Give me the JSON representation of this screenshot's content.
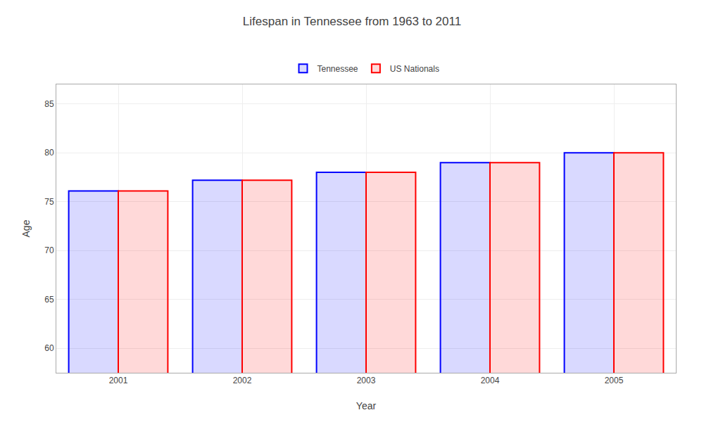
{
  "chart_data": {
    "type": "bar",
    "title": "Lifespan in Tennessee from 1963 to 2011",
    "x_label": "Year",
    "y_label": "Age",
    "categories": [
      "2001",
      "2002",
      "2003",
      "2004",
      "2005"
    ],
    "series": [
      {
        "name": "Tennessee",
        "color": "#0000ff",
        "values": [
          76.1,
          77.2,
          78.0,
          79.0,
          80.0
        ]
      },
      {
        "name": "US Nationals",
        "color": "#ff0000",
        "values": [
          76.1,
          77.2,
          78.0,
          79.0,
          80.0
        ]
      }
    ],
    "ylim": [
      57.5,
      87
    ],
    "yticks": [
      60,
      65,
      70,
      75,
      80,
      85
    ],
    "grid": true,
    "legend": "top"
  }
}
